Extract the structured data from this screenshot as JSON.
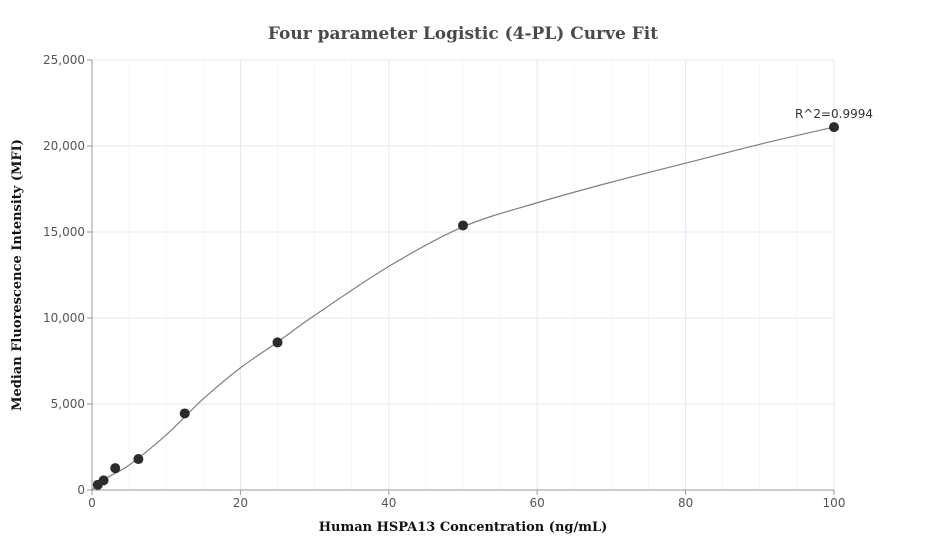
{
  "chart_data": {
    "type": "scatter",
    "title": "Four parameter Logistic (4-PL) Curve Fit",
    "xlabel": "Human HSPA13 Concentration (ng/mL)",
    "ylabel": "Median Fluorescence Intensity (MFI)",
    "xlim": [
      0,
      100
    ],
    "ylim": [
      0,
      25000
    ],
    "x_ticks": [
      0,
      20,
      40,
      60,
      80,
      100
    ],
    "x_tick_labels": [
      "0",
      "20",
      "40",
      "60",
      "80",
      "100"
    ],
    "y_ticks": [
      0,
      5000,
      10000,
      15000,
      20000,
      25000
    ],
    "y_tick_labels": [
      "0",
      "5,000",
      "10,000",
      "15,000",
      "20,000",
      "25,000"
    ],
    "grid": true,
    "points": {
      "x": [
        0.78,
        1.56,
        3.13,
        6.25,
        12.5,
        25,
        50,
        100
      ],
      "y": [
        300,
        560,
        1270,
        1800,
        4450,
        8580,
        15380,
        21100
      ]
    },
    "fit_curve": {
      "x": [
        0,
        2,
        5,
        10,
        15,
        20,
        25,
        30,
        40,
        50,
        60,
        70,
        80,
        90,
        100
      ],
      "y": [
        0,
        700,
        1450,
        3200,
        5300,
        7100,
        8600,
        10150,
        13000,
        15300,
        16700,
        17900,
        19000,
        20100,
        21100
      ]
    },
    "annotation": {
      "text": "R^2=0.9994",
      "x": 100,
      "y": 21100
    },
    "colors": {
      "points": "#2b2b2b",
      "curve": "#7f7f7f",
      "grid": "#e6e6f0",
      "axis": "#999999"
    }
  }
}
